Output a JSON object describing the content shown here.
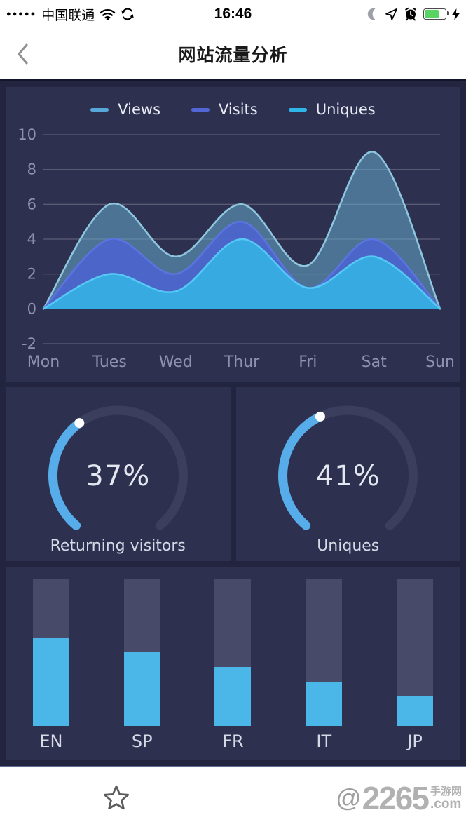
{
  "status_bar": {
    "signal_dots": "●●●●●",
    "carrier": "中国联通",
    "time": "16:46",
    "battery_percent": 65,
    "battery_color": "#58d560",
    "charging": true
  },
  "nav_bar": {
    "title": "网站流量分析"
  },
  "chart_data": [
    {
      "type": "area",
      "title": "",
      "x": [
        "Mon",
        "Tues",
        "Wed",
        "Thur",
        "Fri",
        "Sat",
        "Sun"
      ],
      "ylim": [
        -2,
        10
      ],
      "yticks": [
        10,
        8,
        6,
        4,
        2,
        0,
        -2
      ],
      "grid": true,
      "grid_color": "rgba(255,255,255,0.28)",
      "tick_color": "#8f92ae",
      "legend_position": "top",
      "series": [
        {
          "name": "Views",
          "values": [
            0,
            6,
            3,
            6,
            2.5,
            9,
            0
          ],
          "color": "#55a8d8",
          "fill": "rgba(105,180,215,0.50)",
          "stroke": "#8ec6dd"
        },
        {
          "name": "Visits",
          "values": [
            0,
            4,
            2,
            5,
            1.2,
            4,
            0
          ],
          "color": "#5366d6",
          "fill": "rgba(76,99,210,0.85)",
          "stroke": "#5b74e0"
        },
        {
          "name": "Uniques",
          "values": [
            0,
            2,
            1,
            4,
            1.2,
            3,
            0
          ],
          "color": "#2fb6e9",
          "fill": "rgba(53,174,227,0.95)",
          "stroke": "#55c8f5"
        }
      ]
    },
    {
      "type": "gauge",
      "value": 37,
      "unit": "%",
      "label": "Returning visitors",
      "start_angle": 130,
      "sweep_angle": 280,
      "track_color": "#3b3e5c",
      "color": "#57ade9"
    },
    {
      "type": "gauge",
      "value": 41,
      "unit": "%",
      "label": "Uniques",
      "start_angle": 130,
      "sweep_angle": 280,
      "track_color": "#3b3e5c",
      "color": "#57ade9"
    },
    {
      "type": "bar",
      "categories": [
        "EN",
        "SP",
        "FR",
        "IT",
        "JP"
      ],
      "values": [
        60,
        50,
        40,
        30,
        20
      ],
      "unit": "%",
      "ylim": [
        0,
        100
      ],
      "track_color": "#474a68",
      "fill_color": "#4bb7e9"
    }
  ],
  "footer": {
    "watermark": {
      "at": "@",
      "number": "2265",
      "cn": "手游网",
      "com": ".com"
    }
  },
  "theme": {
    "dashboard_bg": "#222440",
    "panel_bg": "#2e3050",
    "accent_blue": "#57ade9"
  }
}
